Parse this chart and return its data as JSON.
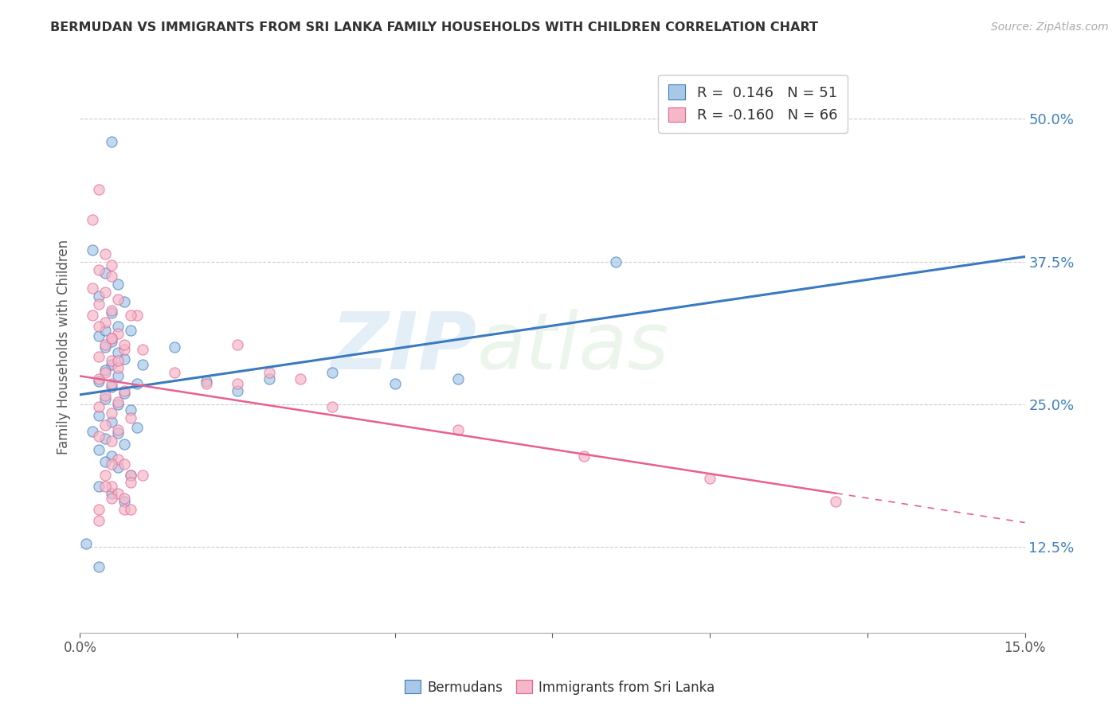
{
  "title": "BERMUDAN VS IMMIGRANTS FROM SRI LANKA FAMILY HOUSEHOLDS WITH CHILDREN CORRELATION CHART",
  "source": "Source: ZipAtlas.com",
  "ylabel": "Family Households with Children",
  "xlim": [
    0.0,
    0.15
  ],
  "ylim": [
    0.05,
    0.55
  ],
  "yticks": [
    0.125,
    0.25,
    0.375,
    0.5
  ],
  "ytick_labels": [
    "12.5%",
    "25.0%",
    "37.5%",
    "50.0%"
  ],
  "xticks": [
    0.0,
    0.025,
    0.05,
    0.075,
    0.1,
    0.125,
    0.15
  ],
  "legend_r1": "R =  0.146",
  "legend_n1": "N = 51",
  "legend_r2": "R = -0.160",
  "legend_n2": "N = 66",
  "blue_color": "#a8c8e8",
  "pink_color": "#f4b8c8",
  "line_blue": "#3a7abf",
  "line_pink": "#e86090",
  "ytick_color": "#4080c0",
  "watermark_zip": "ZIP",
  "watermark_atlas": "atlas",
  "background_color": "#ffffff",
  "grid_color": "#cccccc",
  "bermudans": [
    [
      0.005,
      0.48
    ],
    [
      0.002,
      0.385
    ],
    [
      0.004,
      0.365
    ],
    [
      0.006,
      0.355
    ],
    [
      0.003,
      0.345
    ],
    [
      0.007,
      0.34
    ],
    [
      0.005,
      0.33
    ],
    [
      0.008,
      0.315
    ],
    [
      0.003,
      0.31
    ],
    [
      0.005,
      0.305
    ],
    [
      0.004,
      0.3
    ],
    [
      0.006,
      0.295
    ],
    [
      0.007,
      0.29
    ],
    [
      0.005,
      0.285
    ],
    [
      0.004,
      0.28
    ],
    [
      0.006,
      0.275
    ],
    [
      0.003,
      0.27
    ],
    [
      0.005,
      0.265
    ],
    [
      0.007,
      0.26
    ],
    [
      0.004,
      0.255
    ],
    [
      0.006,
      0.25
    ],
    [
      0.008,
      0.245
    ],
    [
      0.003,
      0.24
    ],
    [
      0.005,
      0.235
    ],
    [
      0.009,
      0.23
    ],
    [
      0.006,
      0.225
    ],
    [
      0.004,
      0.22
    ],
    [
      0.007,
      0.215
    ],
    [
      0.003,
      0.21
    ],
    [
      0.005,
      0.205
    ],
    [
      0.004,
      0.2
    ],
    [
      0.006,
      0.195
    ],
    [
      0.008,
      0.188
    ],
    [
      0.003,
      0.178
    ],
    [
      0.005,
      0.172
    ],
    [
      0.007,
      0.165
    ],
    [
      0.01,
      0.285
    ],
    [
      0.015,
      0.3
    ],
    [
      0.02,
      0.27
    ],
    [
      0.025,
      0.262
    ],
    [
      0.03,
      0.272
    ],
    [
      0.04,
      0.278
    ],
    [
      0.05,
      0.268
    ],
    [
      0.06,
      0.272
    ],
    [
      0.085,
      0.375
    ],
    [
      0.001,
      0.128
    ],
    [
      0.003,
      0.108
    ],
    [
      0.004,
      0.315
    ],
    [
      0.009,
      0.268
    ],
    [
      0.002,
      0.226
    ],
    [
      0.006,
      0.318
    ]
  ],
  "srilanka": [
    [
      0.003,
      0.438
    ],
    [
      0.002,
      0.412
    ],
    [
      0.004,
      0.382
    ],
    [
      0.003,
      0.368
    ],
    [
      0.005,
      0.362
    ],
    [
      0.002,
      0.352
    ],
    [
      0.004,
      0.348
    ],
    [
      0.006,
      0.342
    ],
    [
      0.003,
      0.338
    ],
    [
      0.005,
      0.332
    ],
    [
      0.002,
      0.328
    ],
    [
      0.004,
      0.322
    ],
    [
      0.003,
      0.318
    ],
    [
      0.006,
      0.312
    ],
    [
      0.005,
      0.308
    ],
    [
      0.004,
      0.302
    ],
    [
      0.007,
      0.298
    ],
    [
      0.003,
      0.292
    ],
    [
      0.005,
      0.288
    ],
    [
      0.006,
      0.282
    ],
    [
      0.004,
      0.278
    ],
    [
      0.003,
      0.272
    ],
    [
      0.005,
      0.268
    ],
    [
      0.007,
      0.262
    ],
    [
      0.004,
      0.258
    ],
    [
      0.006,
      0.252
    ],
    [
      0.003,
      0.248
    ],
    [
      0.005,
      0.242
    ],
    [
      0.008,
      0.238
    ],
    [
      0.004,
      0.232
    ],
    [
      0.006,
      0.228
    ],
    [
      0.005,
      0.372
    ],
    [
      0.009,
      0.328
    ],
    [
      0.007,
      0.302
    ],
    [
      0.01,
      0.298
    ],
    [
      0.015,
      0.278
    ],
    [
      0.02,
      0.268
    ],
    [
      0.025,
      0.302
    ],
    [
      0.03,
      0.278
    ],
    [
      0.035,
      0.272
    ],
    [
      0.008,
      0.328
    ],
    [
      0.006,
      0.288
    ],
    [
      0.003,
      0.222
    ],
    [
      0.005,
      0.218
    ],
    [
      0.006,
      0.202
    ],
    [
      0.007,
      0.198
    ],
    [
      0.004,
      0.188
    ],
    [
      0.005,
      0.178
    ],
    [
      0.006,
      0.172
    ],
    [
      0.007,
      0.168
    ],
    [
      0.003,
      0.158
    ],
    [
      0.005,
      0.198
    ],
    [
      0.008,
      0.188
    ],
    [
      0.004,
      0.178
    ],
    [
      0.005,
      0.168
    ],
    [
      0.007,
      0.158
    ],
    [
      0.003,
      0.148
    ],
    [
      0.005,
      0.308
    ],
    [
      0.008,
      0.182
    ],
    [
      0.008,
      0.158
    ],
    [
      0.01,
      0.188
    ],
    [
      0.025,
      0.268
    ],
    [
      0.04,
      0.248
    ],
    [
      0.06,
      0.228
    ],
    [
      0.08,
      0.205
    ],
    [
      0.1,
      0.185
    ],
    [
      0.12,
      0.165
    ]
  ]
}
